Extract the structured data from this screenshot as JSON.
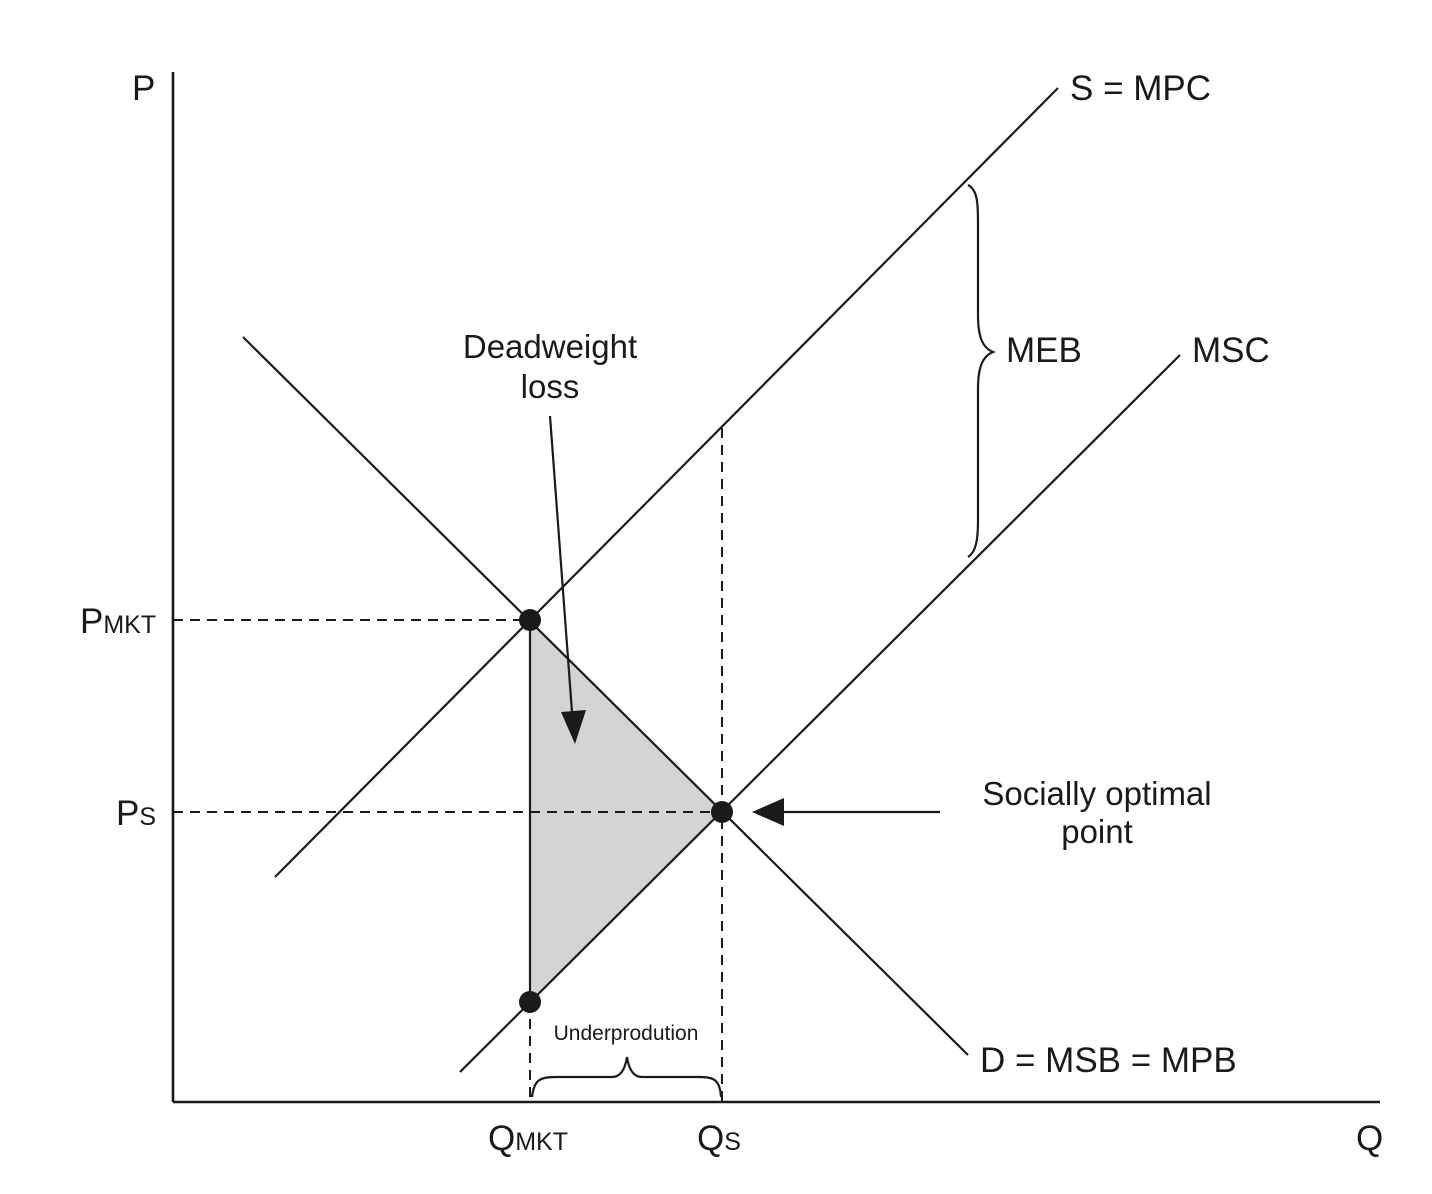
{
  "axes": {
    "y_label": "P",
    "x_label": "Q"
  },
  "price_labels": {
    "p_mkt_main": "P",
    "p_mkt_sub": "MKT",
    "p_s_main": "P",
    "p_s_sub": "S"
  },
  "quantity_labels": {
    "q_mkt_main": "Q",
    "q_mkt_sub": "MKT",
    "q_s_main": "Q",
    "q_s_sub": "S"
  },
  "curves": {
    "supply": "S = MPC",
    "msc": "MSC",
    "demand": "D = MSB = MPB"
  },
  "annotations": {
    "meb": "MEB",
    "deadweight_line1": "Deadweight",
    "deadweight_line2": "loss",
    "social_line1": "Socially optimal",
    "social_line2": "point",
    "underproduction": "Underprodution"
  },
  "colors": {
    "deadweight_fill": "#d4d4d4",
    "ink": "#1a1a1a"
  }
}
